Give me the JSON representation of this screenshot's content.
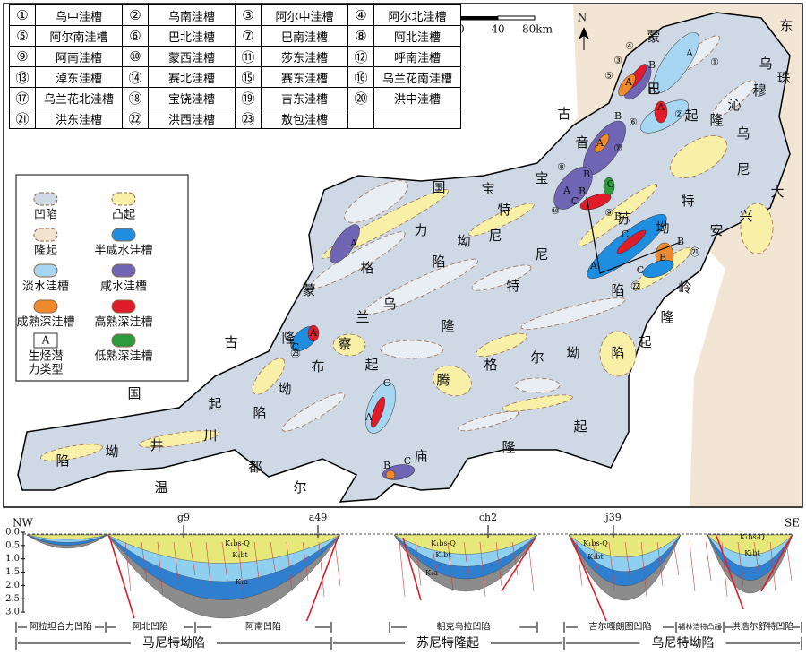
{
  "table": {
    "rows": [
      [
        "①",
        "乌中洼槽",
        "②",
        "乌南洼槽",
        "③",
        "阿尔中洼槽",
        "④",
        "阿尔北洼槽"
      ],
      [
        "⑤",
        "阿尔南洼槽",
        "⑥",
        "巴北洼槽",
        "⑦",
        "巴南洼槽",
        "⑧",
        "阿北洼槽"
      ],
      [
        "⑨",
        "阿南洼槽",
        "⑩",
        "蒙西洼槽",
        "⑪",
        "莎东洼槽",
        "⑫",
        "呼南洼槽"
      ],
      [
        "⑬",
        "淖东洼槽",
        "⑭",
        "赛北洼槽",
        "⑮",
        "赛东洼槽",
        "⑯",
        "乌兰花南洼槽"
      ],
      [
        "⑰",
        "乌兰花北洼槽",
        "⑱",
        "宝饶洼槽",
        "⑲",
        "吉东洼槽",
        "⑳",
        "洪中洼槽"
      ],
      [
        "㉑",
        "洪东洼槽",
        "㉒",
        "洪西洼槽",
        "㉓",
        "敖包洼槽"
      ]
    ]
  },
  "scale_bar": [
    "0",
    "40",
    "80km"
  ],
  "north": "N",
  "legend": [
    {
      "label": [
        "凹陷"
      ],
      "color": "#cfd9e6"
    },
    {
      "label": [
        "凸起"
      ],
      "color": "#f7f0a6"
    },
    {
      "label": [
        "隆起"
      ],
      "color": "#f2e2d0"
    },
    {
      "label": [
        "半咸水洼槽"
      ],
      "color": "#1e8fe0"
    },
    {
      "label": [
        "淡水洼槽"
      ],
      "color": "#a6d6f2"
    },
    {
      "label": [
        "咸水洼槽"
      ],
      "color": "#7064b4"
    },
    {
      "label": [
        "成熟深洼槽"
      ],
      "color": "#ef8a2c"
    },
    {
      "label": [
        "高熟深洼槽"
      ],
      "color": "#e01b2a"
    },
    {
      "label": [
        "生烃潜",
        "力类型"
      ],
      "symbol": "A"
    },
    {
      "label": [
        "低熟深洼槽"
      ],
      "color": "#2e9a3e"
    }
  ],
  "map_labels": [
    "东",
    "乌",
    "珠",
    "穆",
    "沁",
    "隆",
    "起",
    "蒙",
    "古",
    "国",
    "巴",
    "音",
    "宝",
    "力",
    "格",
    "隆",
    "起",
    "苏",
    "尼",
    "特",
    "隆",
    "起",
    "乌",
    "尼",
    "特",
    "坳",
    "陷",
    "宝",
    "特",
    "尼",
    "坳",
    "陷",
    "大",
    "兴",
    "安",
    "岭",
    "隆",
    "起",
    "蒙",
    "古",
    "国",
    "乌",
    "兰",
    "察",
    "布",
    "坳",
    "陷",
    "川",
    "井",
    "坳",
    "陷",
    "温",
    "都",
    "尔",
    "庙",
    "隆",
    "起",
    "腾",
    "格",
    "尔",
    "坳",
    "陷"
  ],
  "map_marks": [
    "①",
    "②",
    "③",
    "④",
    "⑤",
    "⑥",
    "⑦",
    "⑧",
    "⑨",
    "⑩",
    "㉑",
    "㉒",
    "㉓",
    "A",
    "A",
    "B",
    "B",
    "A",
    "B",
    "A",
    "B",
    "A",
    "B",
    "C",
    "C",
    "B",
    "A",
    "C",
    "B",
    "B",
    "C",
    "A",
    "A",
    "C",
    "C",
    "A",
    "B",
    "C"
  ],
  "section": {
    "depth_ticks": [
      "0.0",
      "0.5",
      "1.0",
      "1.5",
      "2.0",
      "2.5",
      "3.0"
    ],
    "ends": [
      "NW",
      "SE"
    ],
    "wells": [
      "g9",
      "a49",
      "ch2",
      "j39"
    ],
    "strata": [
      "K₁bs-Q",
      "K₁bt",
      "K₁a",
      "K₁bs-Q",
      "K₁bt",
      "K₁a",
      "K₁bs-Q",
      "K₁bt",
      "K₁bs-Q",
      "K₁bt"
    ],
    "units": [
      "阿拉坦合力凹陷",
      "阿北凹陷",
      "阿南凹陷",
      "朝克乌拉凹陷",
      "吉尔嘎朗图凹陷",
      "锡林浩特凸起",
      "洪浩尔舒特凹陷"
    ],
    "zones": [
      "马尼特坳陷",
      "苏尼特隆起",
      "乌尼特坳陷"
    ]
  }
}
